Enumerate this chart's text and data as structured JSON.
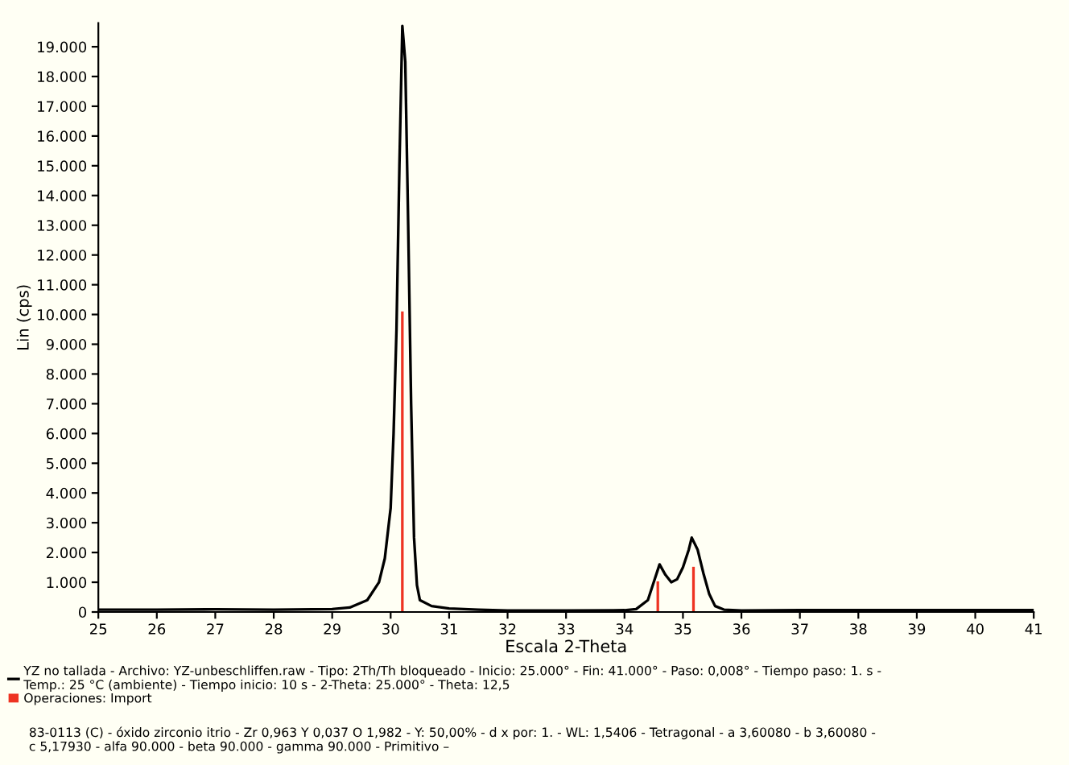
{
  "chart_data": {
    "type": "line",
    "xlabel": "Escala 2-Theta",
    "ylabel": "Lin (cps)",
    "xlim": [
      25,
      41
    ],
    "xticks": [
      25,
      26,
      27,
      28,
      29,
      30,
      31,
      32,
      33,
      34,
      35,
      36,
      37,
      38,
      39,
      40,
      41
    ],
    "ylim": [
      0,
      19800
    ],
    "yticks": [
      0,
      {
        "value": 1000,
        "label": "1.000"
      },
      {
        "value": 2000,
        "label": "2.000"
      },
      {
        "value": 3000,
        "label": "3.000"
      },
      {
        "value": 4000,
        "label": "4.000"
      },
      {
        "value": 5000,
        "label": "5.000"
      },
      {
        "value": 6000,
        "label": "6.000"
      },
      {
        "value": 7000,
        "label": "7.000"
      },
      {
        "value": 8000,
        "label": "8.000"
      },
      {
        "value": 9000,
        "label": "9.000"
      },
      {
        "value": 10000,
        "label": "10.000"
      },
      {
        "value": 11000,
        "label": "11.000"
      },
      {
        "value": 12000,
        "label": "12.000"
      },
      {
        "value": 13000,
        "label": "13.000"
      },
      {
        "value": 14000,
        "label": "14.000"
      },
      {
        "value": 15000,
        "label": "15.000"
      },
      {
        "value": 16000,
        "label": "16.000"
      },
      {
        "value": 17000,
        "label": "17.000"
      },
      {
        "value": 18000,
        "label": "18.000"
      },
      {
        "value": 19000,
        "label": "19.000"
      }
    ],
    "grid": false,
    "legend": "bottom",
    "series": [
      {
        "name": "YZ no tallada - Archivo: YZ-unbeschliffen.raw - Tipo: 2Th/Th bloqueado - Inicio: 25.000° - Fin: 41.000° - Paso: 0,008° - Tiempo paso: 1. s - Temp.: 25 °C (ambiente) - Tiempo inicio: 10 s - 2-Theta: 25.000° - Theta: 12,5",
        "color": "#000000",
        "x": [
          25,
          26,
          27,
          28,
          29,
          29.3,
          29.6,
          29.8,
          29.9,
          30.0,
          30.05,
          30.1,
          30.15,
          30.2,
          30.25,
          30.3,
          30.35,
          30.4,
          30.45,
          30.5,
          30.7,
          31,
          31.5,
          32,
          33,
          34,
          34.2,
          34.4,
          34.5,
          34.6,
          34.7,
          34.8,
          34.9,
          35.0,
          35.1,
          35.15,
          35.25,
          35.35,
          35.45,
          35.55,
          35.7,
          36,
          37,
          38,
          39,
          40,
          41
        ],
        "values": [
          80,
          80,
          90,
          80,
          100,
          150,
          400,
          1000,
          1800,
          3500,
          6000,
          9500,
          15000,
          19700,
          18500,
          13000,
          7000,
          2500,
          900,
          400,
          200,
          120,
          80,
          50,
          50,
          60,
          100,
          400,
          1000,
          1600,
          1250,
          1000,
          1100,
          1500,
          2100,
          2500,
          2100,
          1300,
          600,
          200,
          80,
          50,
          60,
          60,
          60,
          60,
          60
        ]
      },
      {
        "name": "Operaciones: Import",
        "type": "bar",
        "color": "#ee3322",
        "x": [
          30.2,
          34.57,
          35.18
        ],
        "values": [
          10100,
          1030,
          1520
        ]
      }
    ],
    "annotations": [
      "83-0113 (C) - óxido zirconio itrio - Zr 0,963 Y 0,037 O 1,982 - Y: 50,00% - d x por: 1. - WL: 1,5406 - Tetragonal - a 3,60080 - b 3,60080 - c 5,17930 - alfa 90.000 - beta 90.000 - gamma 90.000 - Primitivo –"
    ]
  }
}
